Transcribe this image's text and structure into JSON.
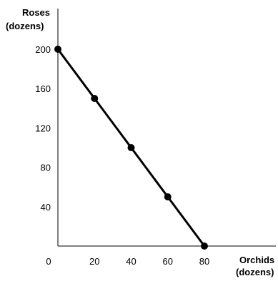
{
  "chart_data": {
    "type": "line",
    "title": "",
    "ylabel_line1": "Roses",
    "ylabel_line2": "(dozens)",
    "xlabel_line1": "Orchids",
    "xlabel_line2": "(dozens)",
    "xlim": [
      0,
      80
    ],
    "ylim": [
      0,
      200
    ],
    "xticks": [
      0,
      20,
      40,
      60,
      80
    ],
    "xtick_labels": [
      "0",
      "20",
      "40",
      "60",
      "80"
    ],
    "yticks": [
      40,
      80,
      120,
      160,
      200
    ],
    "ytick_labels": [
      "40",
      "80",
      "120",
      "160",
      "200"
    ],
    "grid": false,
    "series": [
      {
        "x": [
          0,
          20,
          40,
          60,
          80
        ],
        "y": [
          200,
          150,
          100,
          50,
          0
        ],
        "color": "#000000",
        "markers": true
      }
    ]
  }
}
